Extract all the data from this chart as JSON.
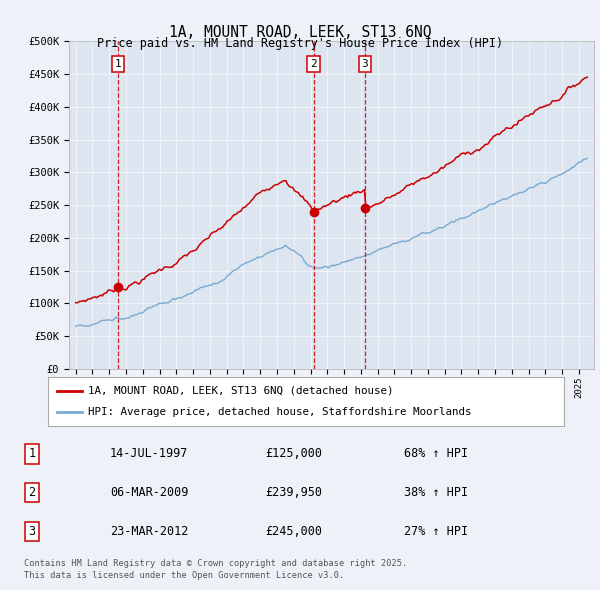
{
  "title1": "1A, MOUNT ROAD, LEEK, ST13 6NQ",
  "title2": "Price paid vs. HM Land Registry's House Price Index (HPI)",
  "ylim": [
    0,
    500000
  ],
  "yticks": [
    0,
    50000,
    100000,
    150000,
    200000,
    250000,
    300000,
    350000,
    400000,
    450000,
    500000
  ],
  "ytick_labels": [
    "£0",
    "£50K",
    "£100K",
    "£150K",
    "£200K",
    "£250K",
    "£300K",
    "£350K",
    "£400K",
    "£450K",
    "£500K"
  ],
  "background_color": "#eef2f8",
  "plot_bg": "#dde5f0",
  "red_color": "#cc0000",
  "blue_color": "#7aaad0",
  "dashed_color": "#cc0000",
  "legend_red_label": "1A, MOUNT ROAD, LEEK, ST13 6NQ (detached house)",
  "legend_blue_label": "HPI: Average price, detached house, Staffordshire Moorlands",
  "sales": [
    {
      "num": 1,
      "date": "14-JUL-1997",
      "price": 125000,
      "hpi_pct": "68% ↑ HPI",
      "year": 1997.54
    },
    {
      "num": 2,
      "date": "06-MAR-2009",
      "price": 239950,
      "hpi_pct": "38% ↑ HPI",
      "year": 2009.18
    },
    {
      "num": 3,
      "date": "23-MAR-2012",
      "price": 245000,
      "hpi_pct": "27% ↑ HPI",
      "year": 2012.23
    }
  ],
  "footer1": "Contains HM Land Registry data © Crown copyright and database right 2025.",
  "footer2": "This data is licensed under the Open Government Licence v3.0."
}
